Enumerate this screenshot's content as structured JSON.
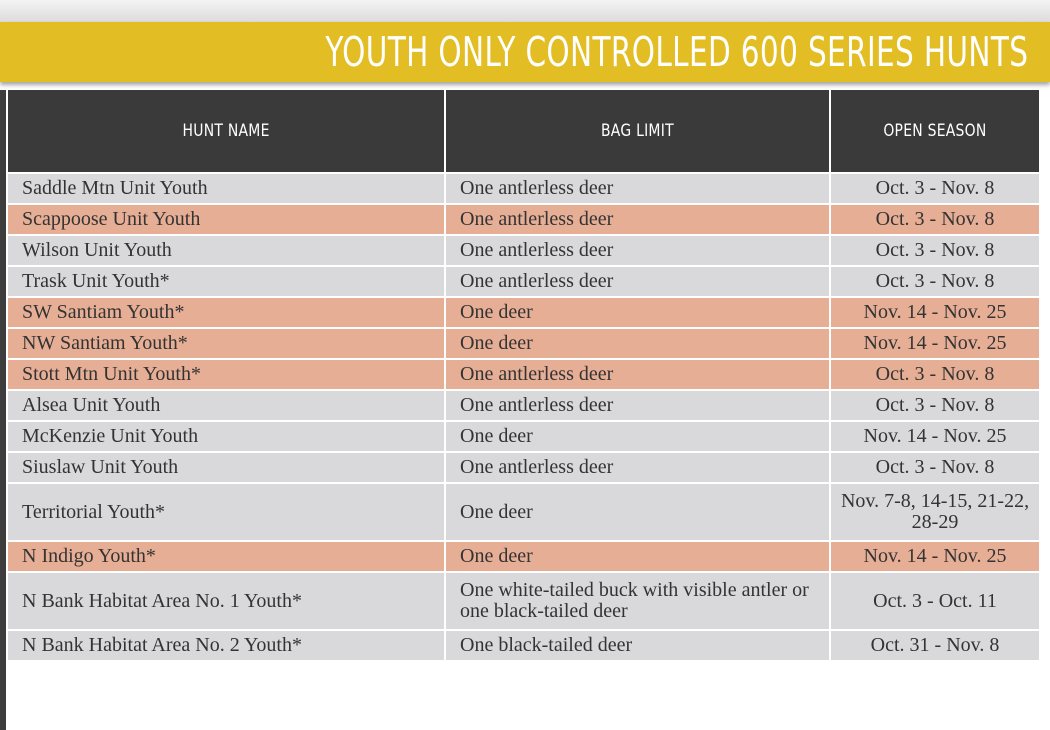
{
  "title": "YOUTH ONLY CONTROLLED 600 SERIES HUNTS",
  "columns": [
    "HUNT NAME",
    "BAG LIMIT",
    "OPEN SEASON"
  ],
  "rows": [
    {
      "hunt": "Saddle Mtn Unit Youth",
      "bag": "One antlerless deer",
      "season": "Oct. 3 - Nov. 8",
      "shade": "grey"
    },
    {
      "hunt": "Scappoose Unit Youth",
      "bag": "One antlerless deer",
      "season": "Oct. 3 - Nov. 8",
      "shade": "salmon"
    },
    {
      "hunt": "Wilson Unit Youth",
      "bag": "One antlerless deer",
      "season": "Oct. 3 - Nov. 8",
      "shade": "grey"
    },
    {
      "hunt": "Trask Unit Youth*",
      "bag": "One antlerless deer",
      "season": "Oct. 3 - Nov. 8",
      "shade": "grey"
    },
    {
      "hunt": "SW Santiam Youth*",
      "bag": "One deer",
      "season": "Nov. 14 - Nov. 25",
      "shade": "salmon"
    },
    {
      "hunt": "NW Santiam Youth*",
      "bag": "One deer",
      "season": "Nov. 14 - Nov. 25",
      "shade": "salmon"
    },
    {
      "hunt": "Stott Mtn Unit Youth*",
      "bag": "One antlerless deer",
      "season": "Oct. 3 - Nov. 8",
      "shade": "salmon"
    },
    {
      "hunt": "Alsea Unit Youth",
      "bag": "One antlerless deer",
      "season": "Oct. 3 - Nov. 8",
      "shade": "grey"
    },
    {
      "hunt": "McKenzie Unit Youth",
      "bag": "One deer",
      "season": "Nov. 14 - Nov. 25",
      "shade": "grey"
    },
    {
      "hunt": "Siuslaw Unit Youth",
      "bag": "One antlerless deer",
      "season": "Oct. 3 - Nov. 8",
      "shade": "grey"
    },
    {
      "hunt": "Territorial Youth*",
      "bag": "One deer",
      "season": "Nov. 7-8, 14-15, 21-22, 28-29",
      "shade": "grey",
      "tall": true
    },
    {
      "hunt": "N Indigo Youth*",
      "bag": "One deer",
      "season": "Nov. 14 - Nov. 25",
      "shade": "salmon"
    },
    {
      "hunt": "N Bank Habitat Area No. 1 Youth*",
      "bag": "One white-tailed buck with visible antler or one black-tailed deer",
      "season": "Oct. 3 - Oct. 11",
      "shade": "grey",
      "tall": true
    },
    {
      "hunt": "N Bank Habitat Area No. 2 Youth*",
      "bag": "One black-tailed deer",
      "season": "Oct. 31 - Nov. 8",
      "shade": "grey"
    }
  ]
}
